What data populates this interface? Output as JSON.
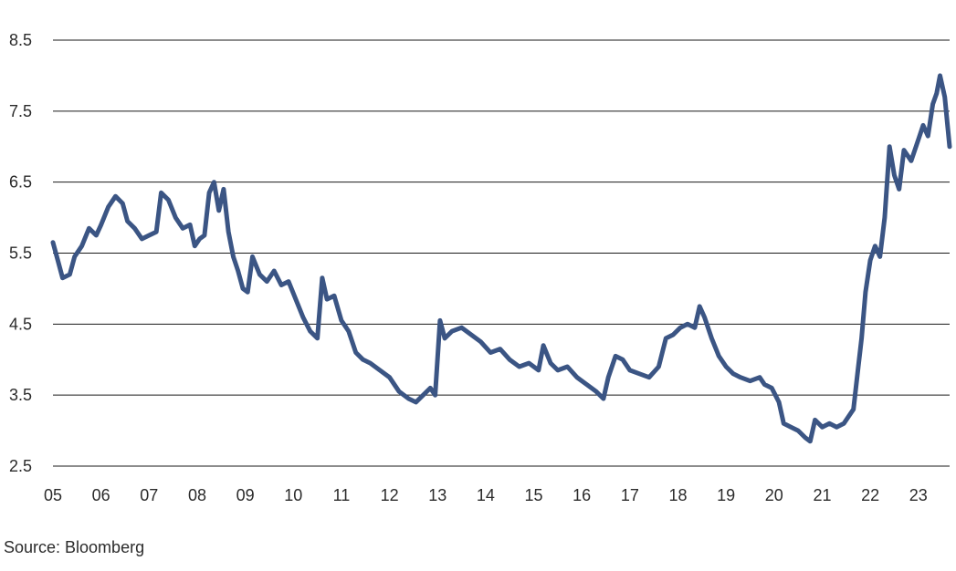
{
  "source_note": "Source: Bloomberg",
  "chart_data": {
    "type": "line",
    "title": "",
    "xlabel": "",
    "ylabel": "",
    "ylim": [
      2.5,
      8.5
    ],
    "xlim": [
      2005.0,
      2023.65
    ],
    "y_ticks": [
      8.5,
      7.5,
      6.5,
      5.5,
      4.5,
      3.5,
      2.5
    ],
    "y_tick_labels": [
      "8.5",
      "7.5",
      "6.5",
      "5.5",
      "4.5",
      "3.5",
      "2.5"
    ],
    "x_ticks": [
      2005,
      2006,
      2007,
      2008,
      2009,
      2010,
      2011,
      2012,
      2013,
      2014,
      2015,
      2016,
      2017,
      2018,
      2019,
      2020,
      2021,
      2022,
      2023
    ],
    "x_tick_labels": [
      "05",
      "06",
      "07",
      "08",
      "09",
      "10",
      "11",
      "12",
      "13",
      "14",
      "15",
      "16",
      "17",
      "18",
      "19",
      "20",
      "21",
      "22",
      "23"
    ],
    "grid": "horizontal",
    "legend": "none",
    "line_color": "#3b5584",
    "grid_color": "#1a1a1a",
    "series": [
      {
        "x": [
          2005.0,
          2005.1,
          2005.2,
          2005.35,
          2005.45,
          2005.6,
          2005.75,
          2005.9,
          2006.0,
          2006.15,
          2006.3,
          2006.45,
          2006.55,
          2006.7,
          2006.85,
          2007.0,
          2007.15,
          2007.25,
          2007.4,
          2007.55,
          2007.7,
          2007.85,
          2007.95,
          2008.05,
          2008.15,
          2008.25,
          2008.35,
          2008.45,
          2008.55,
          2008.65,
          2008.75,
          2008.85,
          2008.95,
          2009.05,
          2009.15,
          2009.3,
          2009.45,
          2009.6,
          2009.75,
          2009.9,
          2010.05,
          2010.2,
          2010.35,
          2010.5,
          2010.6,
          2010.7,
          2010.85,
          2011.0,
          2011.15,
          2011.3,
          2011.45,
          2011.6,
          2011.8,
          2012.0,
          2012.2,
          2012.4,
          2012.55,
          2012.7,
          2012.85,
          2012.95,
          2013.05,
          2013.15,
          2013.3,
          2013.5,
          2013.7,
          2013.9,
          2014.1,
          2014.3,
          2014.5,
          2014.7,
          2014.9,
          2015.1,
          2015.2,
          2015.35,
          2015.5,
          2015.7,
          2015.9,
          2016.1,
          2016.3,
          2016.45,
          2016.55,
          2016.7,
          2016.85,
          2017.0,
          2017.2,
          2017.4,
          2017.6,
          2017.75,
          2017.9,
          2018.05,
          2018.2,
          2018.35,
          2018.45,
          2018.55,
          2018.7,
          2018.85,
          2019.0,
          2019.15,
          2019.3,
          2019.5,
          2019.7,
          2019.8,
          2019.95,
          2020.1,
          2020.2,
          2020.35,
          2020.5,
          2020.65,
          2020.75,
          2020.85,
          2021.0,
          2021.15,
          2021.3,
          2021.45,
          2021.55,
          2021.65,
          2021.75,
          2021.82,
          2021.9,
          2022.0,
          2022.1,
          2022.2,
          2022.3,
          2022.4,
          2022.5,
          2022.6,
          2022.7,
          2022.85,
          2023.0,
          2023.1,
          2023.2,
          2023.3,
          2023.38,
          2023.45,
          2023.55,
          2023.65
        ],
        "y": [
          5.65,
          5.4,
          5.15,
          5.2,
          5.45,
          5.6,
          5.85,
          5.75,
          5.9,
          6.15,
          6.3,
          6.2,
          5.95,
          5.85,
          5.7,
          5.75,
          5.8,
          6.35,
          6.25,
          6.0,
          5.85,
          5.9,
          5.6,
          5.7,
          5.75,
          6.35,
          6.5,
          6.1,
          6.4,
          5.8,
          5.45,
          5.25,
          5.0,
          4.95,
          5.45,
          5.2,
          5.1,
          5.25,
          5.05,
          5.1,
          4.85,
          4.6,
          4.4,
          4.3,
          5.15,
          4.85,
          4.9,
          4.55,
          4.4,
          4.1,
          4.0,
          3.95,
          3.85,
          3.75,
          3.55,
          3.45,
          3.4,
          3.5,
          3.6,
          3.5,
          4.55,
          4.3,
          4.4,
          4.45,
          4.35,
          4.25,
          4.1,
          4.15,
          4.0,
          3.9,
          3.95,
          3.85,
          4.2,
          3.95,
          3.85,
          3.9,
          3.75,
          3.65,
          3.55,
          3.45,
          3.75,
          4.05,
          4.0,
          3.85,
          3.8,
          3.75,
          3.9,
          4.3,
          4.35,
          4.45,
          4.5,
          4.45,
          4.75,
          4.6,
          4.3,
          4.05,
          3.9,
          3.8,
          3.75,
          3.7,
          3.75,
          3.65,
          3.6,
          3.4,
          3.1,
          3.05,
          3.0,
          2.9,
          2.85,
          3.15,
          3.05,
          3.1,
          3.05,
          3.1,
          3.2,
          3.3,
          3.9,
          4.3,
          4.95,
          5.4,
          5.6,
          5.45,
          6.0,
          7.0,
          6.6,
          6.4,
          6.95,
          6.8,
          7.1,
          7.3,
          7.15,
          7.6,
          7.75,
          8.0,
          7.7,
          7.0
        ]
      }
    ]
  }
}
